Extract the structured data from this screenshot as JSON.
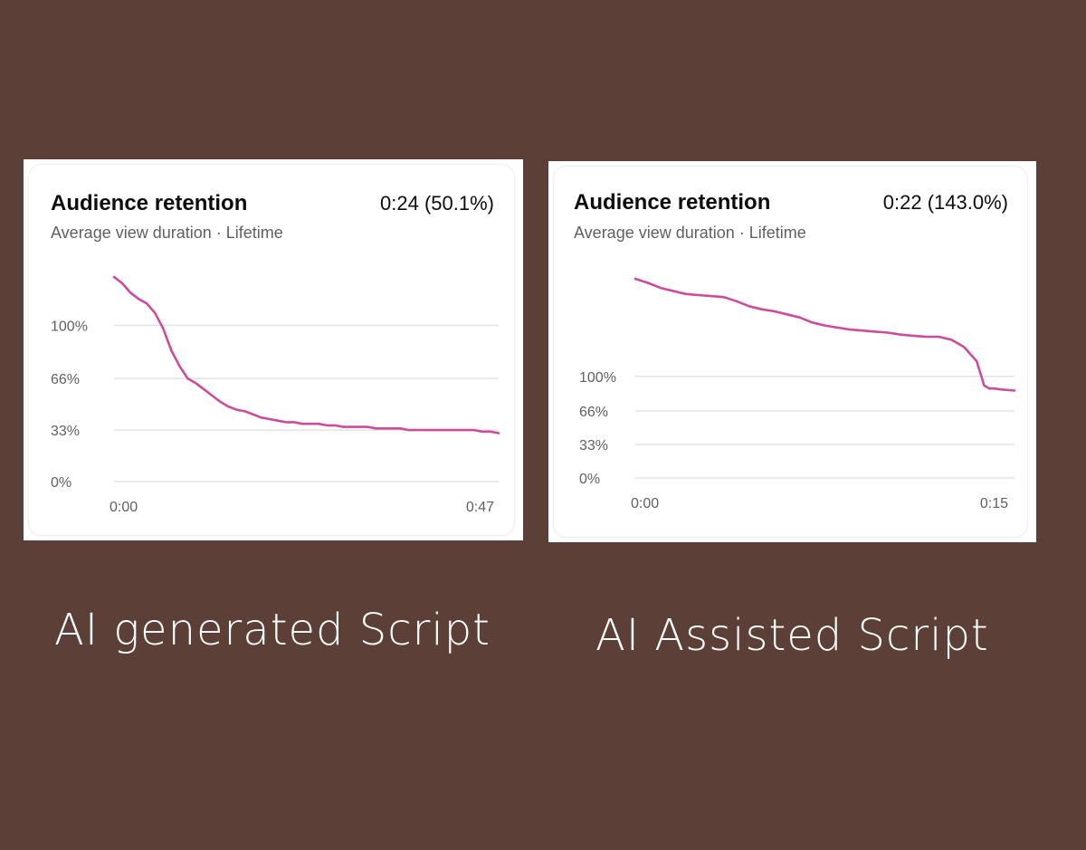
{
  "captions": {
    "left": "AI generated Script",
    "right": "AI Assisted Script"
  },
  "colors": {
    "background": "#5c3f37",
    "line": "#cc4c9b",
    "grid": "#e3e3e3"
  },
  "chart_data": [
    {
      "type": "line",
      "title": "Audience retention",
      "stat": "0:24 (50.1%)",
      "subtitle": "Average view duration · Lifetime",
      "ytick_labels": [
        "100%",
        "66%",
        "33%",
        "0%"
      ],
      "yticks": [
        100,
        66,
        33,
        0
      ],
      "xtick_labels": [
        "0:00",
        "0:47"
      ],
      "xlim": [
        0,
        47
      ],
      "ylim": [
        0,
        131
      ],
      "xlabel": "",
      "ylabel": "",
      "grid": true,
      "series": [
        {
          "name": "retention",
          "x": [
            0,
            1,
            2,
            3,
            4,
            5,
            6,
            7,
            8,
            9,
            10,
            11,
            12,
            13,
            14,
            15,
            16,
            17,
            18,
            19,
            20,
            21,
            22,
            23,
            24,
            25,
            26,
            27,
            28,
            29,
            30,
            31,
            32,
            33,
            34,
            35,
            36,
            37,
            38,
            39,
            40,
            41,
            42,
            43,
            44,
            45,
            46,
            47
          ],
          "values": [
            131,
            127,
            121,
            117,
            114,
            108,
            98,
            84,
            74,
            66,
            63,
            59,
            55,
            51,
            48,
            46,
            45,
            43,
            41,
            40,
            39,
            38,
            38,
            37,
            37,
            37,
            36,
            36,
            35,
            35,
            35,
            35,
            34,
            34,
            34,
            34,
            33,
            33,
            33,
            33,
            33,
            33,
            33,
            33,
            33,
            32,
            32,
            31
          ]
        }
      ]
    },
    {
      "type": "line",
      "title": "Audience retention",
      "stat": "0:22 (143.0%)",
      "subtitle": "Average view duration · Lifetime",
      "ytick_labels": [
        "100%",
        "66%",
        "33%",
        "0%"
      ],
      "yticks": [
        100,
        66,
        33,
        0
      ],
      "xtick_labels": [
        "0:00",
        "0:15"
      ],
      "xlim": [
        0,
        15
      ],
      "ylim": [
        0,
        196
      ],
      "xlabel": "",
      "ylabel": "",
      "grid": true,
      "series": [
        {
          "name": "retention",
          "x": [
            0,
            0.5,
            1,
            1.5,
            2,
            2.5,
            3,
            3.5,
            4,
            4.5,
            5,
            5.5,
            6,
            6.5,
            7,
            7.5,
            8,
            8.5,
            9,
            9.5,
            10,
            10.5,
            11,
            11.5,
            12,
            12.5,
            13,
            13.5,
            13.8,
            14.0,
            14.2,
            14.5,
            15
          ],
          "values": [
            196,
            192,
            187,
            184,
            181,
            180,
            179,
            178,
            174,
            169,
            166,
            164,
            161,
            158,
            153,
            150,
            148,
            146,
            145,
            144,
            143,
            141,
            140,
            139,
            139,
            136,
            129,
            115,
            91,
            88,
            88,
            87,
            86
          ]
        }
      ]
    }
  ]
}
